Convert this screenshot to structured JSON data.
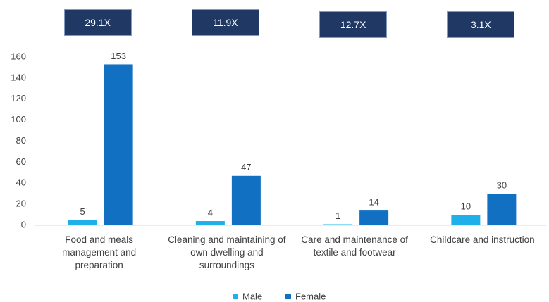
{
  "chart_data": {
    "type": "bar",
    "categories": [
      "Food and meals management and preparation",
      "Cleaning and maintaining of own dwelling and surroundings",
      "Care and maintenance of textile and footwear",
      "Childcare and instruction"
    ],
    "series": [
      {
        "name": "Male",
        "color": "#1fb0ea",
        "values": [
          5,
          4,
          1,
          10
        ]
      },
      {
        "name": "Female",
        "color": "#1270c2",
        "values": [
          153,
          47,
          14,
          30
        ]
      }
    ],
    "annotations": [
      "29.1X",
      "11.9X",
      "12.7X",
      "3.1X"
    ],
    "ylim": [
      0,
      160
    ],
    "yticks": [
      0,
      20,
      40,
      60,
      80,
      100,
      120,
      140,
      160
    ],
    "legend": "bottom"
  }
}
